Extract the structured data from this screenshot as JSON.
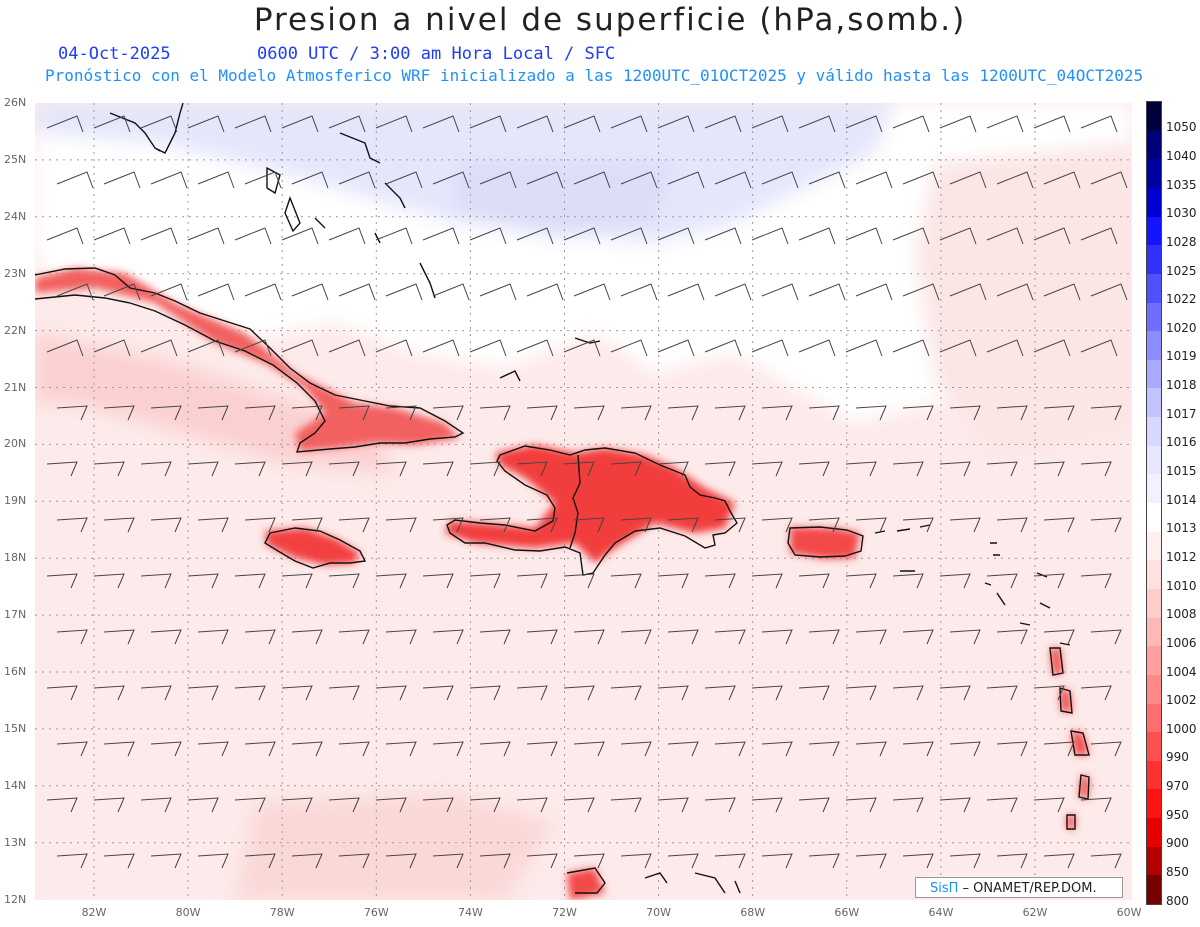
{
  "header": {
    "title": "Presion a nivel de superficie (hPa,somb.)",
    "date": "04-Oct-2025",
    "time_line": "0600 UTC / 3:00 am Hora Local / SFC",
    "model_line": "Pronóstico con el Modelo Atmosferico WRF inicializado a las 1200UTC_01OCT2025 y válido hasta las  1200UTC_04OCT2025"
  },
  "axes": {
    "lat_labels": [
      "26N",
      "25N",
      "24N",
      "23N",
      "22N",
      "21N",
      "20N",
      "19N",
      "18N",
      "17N",
      "16N",
      "15N",
      "14N",
      "13N",
      "12N"
    ],
    "lon_labels": [
      "82W",
      "80W",
      "78W",
      "76W",
      "74W",
      "72W",
      "70W",
      "68W",
      "66W",
      "64W",
      "62W",
      "60W"
    ]
  },
  "legend": {
    "labels": [
      "1050",
      "1040",
      "1035",
      "1030",
      "1028",
      "1025",
      "1022",
      "1020",
      "1019",
      "1018",
      "1017",
      "1016",
      "1015",
      "1014",
      "1013",
      "1012",
      "1010",
      "1008",
      "1006",
      "1004",
      "1002",
      "1000",
      "990",
      "970",
      "950",
      "900",
      "850",
      "800"
    ],
    "colors": [
      "#00003c",
      "#000078",
      "#0000a5",
      "#0000d2",
      "#1414ff",
      "#3232ff",
      "#5050ff",
      "#6e6eff",
      "#8c8cff",
      "#aaaaff",
      "#c3c3ff",
      "#d7d7ff",
      "#e6e6ff",
      "#f2f2ff",
      "#ffffff",
      "#ffeeee",
      "#ffe0e0",
      "#ffcccc",
      "#ffb8b8",
      "#ffa0a0",
      "#ff8888",
      "#ff6e6e",
      "#ff5050",
      "#ff3232",
      "#ff1414",
      "#e60000",
      "#b40000",
      "#780000"
    ]
  },
  "credit": {
    "brand": "SisΠ",
    "org": " – ONAMET/REP.DOM."
  },
  "colors": {
    "ocean": "#fdeaea",
    "high": "#e3e5fb",
    "land_fill": "#f24848",
    "coast": "#111111"
  }
}
